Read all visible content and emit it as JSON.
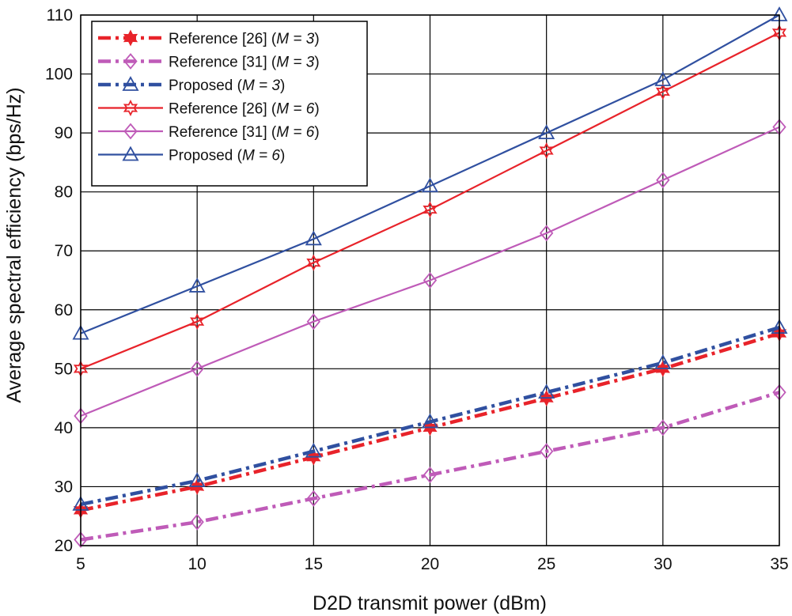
{
  "colors": {
    "red": "#e8232a",
    "magenta": "#bf5bb8",
    "blue": "#3050a0",
    "grid": "#000000"
  },
  "chart_data": {
    "type": "line",
    "xlabel": "D2D transmit power (dBm)",
    "ylabel": "Average spectral efficiency (bps/Hz)",
    "xlim": [
      5,
      35
    ],
    "ylim": [
      20,
      110
    ],
    "xticks": [
      5,
      10,
      15,
      20,
      25,
      30,
      35
    ],
    "yticks": [
      20,
      30,
      40,
      50,
      60,
      70,
      80,
      90,
      100,
      110
    ],
    "grid": true,
    "legend_position": "top-left",
    "x": [
      5,
      10,
      15,
      20,
      25,
      30,
      35
    ],
    "series": [
      {
        "name": "Reference [26] (M = 3)",
        "label_main": "Reference [26] (",
        "label_m": "M = 3",
        "label_end": ")",
        "color": "red",
        "marker": "star",
        "style": "dashdot",
        "values": [
          26,
          30,
          35,
          40,
          45,
          50,
          56
        ]
      },
      {
        "name": "Reference [31] (M = 3)",
        "label_main": "Reference [31] (",
        "label_m": "M = 3",
        "label_end": ")",
        "color": "magenta",
        "marker": "diamond",
        "style": "dashdot",
        "values": [
          21,
          24,
          28,
          32,
          36,
          40,
          46
        ]
      },
      {
        "name": "Proposed (M = 3)",
        "label_main": "Proposed (",
        "label_m": "M = 3",
        "label_end": ")",
        "color": "blue",
        "marker": "triangle",
        "style": "dashdot",
        "values": [
          27,
          31,
          36,
          41,
          46,
          51,
          57
        ]
      },
      {
        "name": "Reference [26] (M = 6)",
        "label_main": "Reference [26] (",
        "label_m": "M = 6",
        "label_end": ")",
        "color": "red",
        "marker": "star",
        "style": "solid",
        "values": [
          50,
          58,
          68,
          77,
          87,
          97,
          107
        ]
      },
      {
        "name": "Reference [31] (M = 6)",
        "label_main": "Reference [31] (",
        "label_m": "M = 6",
        "label_end": ")",
        "color": "magenta",
        "marker": "diamond",
        "style": "solid",
        "values": [
          42,
          50,
          58,
          65,
          73,
          82,
          91
        ]
      },
      {
        "name": "Proposed (M = 6)",
        "label_main": "Proposed (",
        "label_m": "M = 6",
        "label_end": ")",
        "color": "blue",
        "marker": "triangle",
        "style": "solid",
        "values": [
          56,
          64,
          72,
          81,
          90,
          99,
          110
        ]
      }
    ]
  }
}
